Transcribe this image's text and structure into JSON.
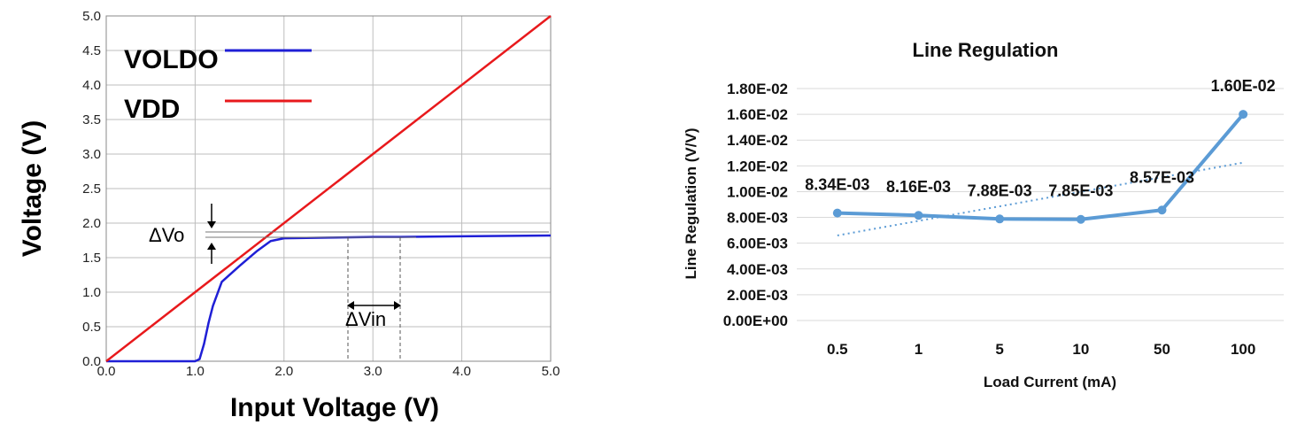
{
  "chart_data": [
    {
      "type": "line",
      "xlabel": "Input Voltage  (V)",
      "ylabel": "Voltage (V)",
      "xlim": [
        0,
        5
      ],
      "ylim": [
        0,
        5
      ],
      "x_ticks": [
        "0.0",
        "1.0",
        "2.0",
        "3.0",
        "4.0",
        "5.0"
      ],
      "y_ticks": [
        "0.0",
        "0.5",
        "1.0",
        "1.5",
        "2.0",
        "2.5",
        "3.0",
        "3.5",
        "4.0",
        "4.5",
        "5.0"
      ],
      "grid": true,
      "legend_position": "top-left",
      "annotations": [
        "ΔVo",
        "ΔVin"
      ],
      "series": [
        {
          "name": "VOLDO",
          "color": "#1f1fd6",
          "x": [
            0,
            1.0,
            1.05,
            1.1,
            1.15,
            1.2,
            1.3,
            1.5,
            1.7,
            1.85,
            2.0,
            2.5,
            3.0,
            3.3,
            4.0,
            5.0
          ],
          "y": [
            0,
            0,
            0.03,
            0.25,
            0.55,
            0.8,
            1.15,
            1.38,
            1.6,
            1.74,
            1.78,
            1.79,
            1.8,
            1.8,
            1.81,
            1.82
          ]
        },
        {
          "name": "VDD",
          "color": "#e8191c",
          "x": [
            0,
            5
          ],
          "y": [
            0,
            5
          ]
        }
      ]
    },
    {
      "type": "line",
      "title": "Line Regulation",
      "xlabel": "Load Current (mA)",
      "ylabel": "Line Regulation (V/V)",
      "categories": [
        "0.5",
        "1",
        "5",
        "10",
        "50",
        "100"
      ],
      "ylim": [
        0,
        0.018
      ],
      "y_ticks": [
        "0.00E+00",
        "2.00E-03",
        "4.00E-03",
        "6.00E-03",
        "8.00E-03",
        "1.00E-02",
        "1.20E-02",
        "1.40E-02",
        "1.60E-02",
        "1.80E-02"
      ],
      "grid": true,
      "color": "#5b9bd5",
      "values": [
        0.00834,
        0.00816,
        0.00788,
        0.00785,
        0.00857,
        0.016
      ],
      "data_labels": [
        "8.34E-03",
        "8.16E-03",
        "7.88E-03",
        "7.85E-03",
        "8.57E-03",
        "1.60E-02"
      ],
      "trendline": {
        "type": "linear",
        "style": "dotted",
        "start": 0.0066,
        "end": 0.01225
      }
    }
  ]
}
